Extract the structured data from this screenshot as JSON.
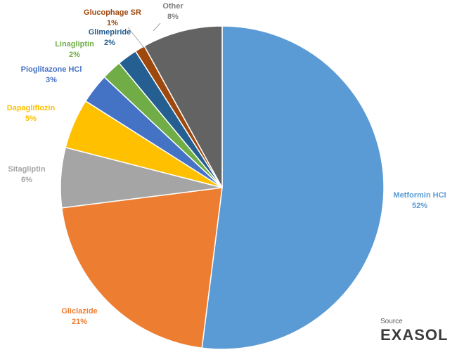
{
  "chart_data": {
    "type": "pie",
    "categories": [
      "Metformin HCl",
      "Gliclazide",
      "Sitagliptin",
      "Dapagliflozin",
      "Pioglitazone HCl",
      "Linagliptin",
      "Glimepiride",
      "Glucophage SR",
      "Other"
    ],
    "values": [
      52,
      21,
      6,
      5,
      3,
      2,
      2,
      1,
      8
    ],
    "value_labels": [
      "52%",
      "21%",
      "6%",
      "5%",
      "3%",
      "2%",
      "2%",
      "1%",
      "8%"
    ],
    "colors": [
      "#5b9bd5",
      "#ed7d31",
      "#a5a5a5",
      "#ffc000",
      "#4472c4",
      "#70ad47",
      "#255e91",
      "#9e480e",
      "#636363"
    ],
    "label_colors": [
      "#5b9bd5",
      "#ed7d31",
      "#a5a5a5",
      "#ffc000",
      "#4472c4",
      "#70ad47",
      "#255e91",
      "#9e480e",
      "#7f7f7f"
    ]
  },
  "source": {
    "label": "Source",
    "brand": "EXASOL"
  }
}
